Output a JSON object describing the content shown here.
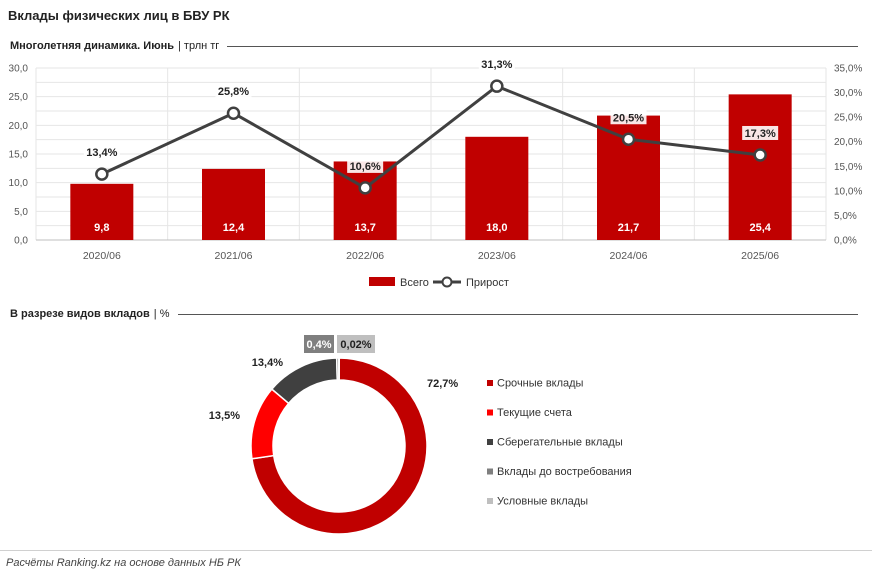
{
  "title": "Вклады физических лиц в БВУ РК",
  "section1": {
    "name": "Многолетняя динамика. Июнь",
    "unit": "| трлн тг"
  },
  "section2": {
    "name": "В разрезе видов вкладов",
    "unit": "| %"
  },
  "source": "Расчёты Ranking.kz на основе данных НБ РК",
  "colors": {
    "bar": "#c00000",
    "line": "#404040"
  },
  "chart_data": [
    {
      "type": "bar+line",
      "categories": [
        "2020/06",
        "2021/06",
        "2022/06",
        "2023/06",
        "2024/06",
        "2025/06"
      ],
      "series": [
        {
          "name": "Всего",
          "type": "bar",
          "axis": "left",
          "values": [
            9.8,
            12.4,
            13.7,
            18.0,
            21.7,
            25.4
          ],
          "labels": [
            "9,8",
            "12,4",
            "13,7",
            "18,0",
            "21,7",
            "25,4"
          ]
        },
        {
          "name": "Прирост",
          "type": "line",
          "axis": "right",
          "values": [
            13.4,
            25.8,
            10.6,
            31.3,
            20.5,
            17.3
          ],
          "labels": [
            "13,4%",
            "25,8%",
            "10,6%",
            "31,3%",
            "20,5%",
            "17,3%"
          ]
        }
      ],
      "y_left": {
        "range": [
          0,
          30
        ],
        "ticks": [
          "0,0",
          "5,0",
          "10,0",
          "15,0",
          "20,0",
          "25,0",
          "30,0"
        ]
      },
      "y_right": {
        "range": [
          0,
          35
        ],
        "ticks": [
          "0,0%",
          "5,0%",
          "10,0%",
          "15,0%",
          "20,0%",
          "25,0%",
          "30,0%",
          "35,0%"
        ]
      },
      "grid": true,
      "legend": "bottom"
    },
    {
      "type": "pie",
      "style": "donut",
      "legend": "right",
      "slices": [
        {
          "name": "Срочные вклады",
          "value": 72.7,
          "label": "72,7%",
          "color": "#c00000"
        },
        {
          "name": "Текущие счета",
          "value": 13.5,
          "label": "13,5%",
          "color": "#ff0000"
        },
        {
          "name": "Сберегательные вклады",
          "value": 13.4,
          "label": "13,4%",
          "color": "#404040"
        },
        {
          "name": "Вклады до востребования",
          "value": 0.4,
          "label": "0,4%",
          "color": "#7f7f7f"
        },
        {
          "name": "Условные вклады",
          "value": 0.02,
          "label": "0,02%",
          "color": "#bfbfbf"
        }
      ]
    }
  ]
}
